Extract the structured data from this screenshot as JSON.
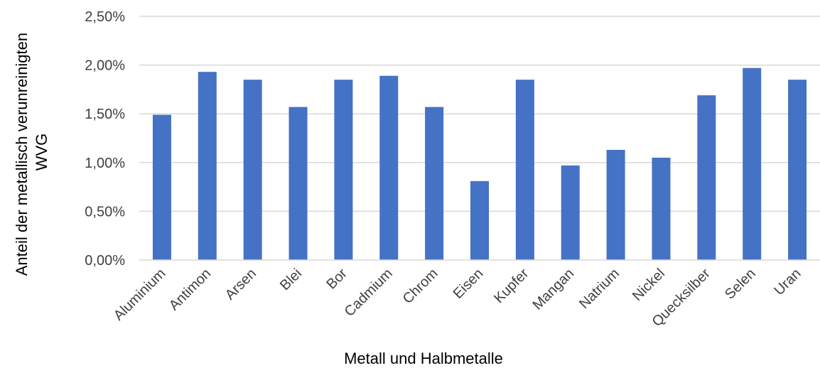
{
  "chart_data": {
    "type": "bar",
    "categories": [
      "Aluminium",
      "Antimon",
      "Arsen",
      "Blei",
      "Bor",
      "Cadmium",
      "Chrom",
      "Eisen",
      "Kupfer",
      "Mangan",
      "Natrium",
      "Nickel",
      "Quecksilber",
      "Selen",
      "Uran"
    ],
    "values": [
      1.49,
      1.93,
      1.85,
      1.57,
      1.85,
      1.89,
      1.57,
      0.81,
      1.85,
      0.97,
      1.13,
      1.05,
      1.69,
      1.97,
      1.85
    ],
    "value_unit": "%",
    "xlabel": "Metall und Halbmetalle",
    "ylabel_lines": [
      "Anteil der metallisch verunreinigten",
      "WVG"
    ],
    "ylim": [
      0,
      2.5
    ],
    "yticks": [
      "0,00%",
      "0,50%",
      "1,00%",
      "1,50%",
      "2,00%",
      "2,50%"
    ],
    "grid": true,
    "legend": "none",
    "bar_color": "#4472C4",
    "grid_color": "#D9D9D9"
  }
}
